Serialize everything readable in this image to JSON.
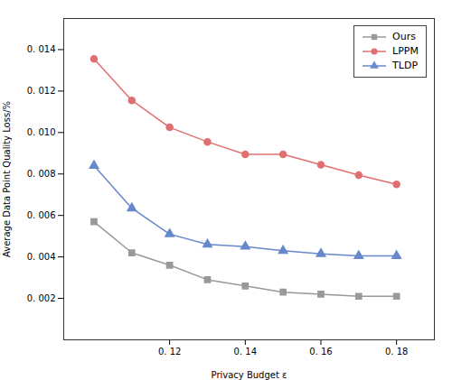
{
  "chart_data": {
    "type": "line",
    "xlabel": "Privacy Budget ε",
    "ylabel": "Average Data Point Quality Loss/%",
    "x": [
      0.1,
      0.11,
      0.12,
      0.13,
      0.14,
      0.15,
      0.16,
      0.17,
      0.18
    ],
    "series": [
      {
        "name": "Ours",
        "color": "#999999",
        "marker": "square",
        "values": [
          0.0057,
          0.0042,
          0.0036,
          0.0029,
          0.0026,
          0.0023,
          0.0022,
          0.0021,
          0.0021
        ]
      },
      {
        "name": "LPPM",
        "color": "#e07070",
        "marker": "circle",
        "values": [
          0.01355,
          0.01155,
          0.01025,
          0.00955,
          0.00895,
          0.00895,
          0.00845,
          0.00795,
          0.0075
        ]
      },
      {
        "name": "TLDP",
        "color": "#6688cc",
        "marker": "triangle",
        "values": [
          0.0084,
          0.00635,
          0.0051,
          0.0046,
          0.0045,
          0.0043,
          0.00415,
          0.00405,
          0.00405
        ]
      }
    ],
    "xlim": [
      0.092,
      0.19
    ],
    "ylim": [
      0.0,
      0.0155
    ],
    "xticks": [
      {
        "value": 0.12,
        "label": "0. 12"
      },
      {
        "value": 0.14,
        "label": "0. 14"
      },
      {
        "value": 0.16,
        "label": "0. 16"
      },
      {
        "value": 0.18,
        "label": "0. 18"
      }
    ],
    "yticks": [
      {
        "value": 0.002,
        "label": "0. 002"
      },
      {
        "value": 0.004,
        "label": "0. 004"
      },
      {
        "value": 0.006,
        "label": "0. 006"
      },
      {
        "value": 0.008,
        "label": "0. 008"
      },
      {
        "value": 0.01,
        "label": "0. 010"
      },
      {
        "value": 0.012,
        "label": "0. 012"
      },
      {
        "value": 0.014,
        "label": "0. 014"
      }
    ],
    "grid": false,
    "legend": "upper right"
  }
}
